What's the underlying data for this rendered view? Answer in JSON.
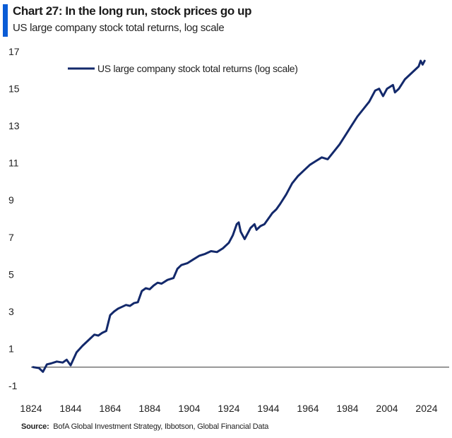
{
  "header": {
    "title": "Chart 27: In the long run, stock prices go up",
    "subtitle": "US large company stock total returns, log scale",
    "accent_color": "#0a5cd6"
  },
  "footer": {
    "source_label": "Source:",
    "source_text": "BofA Global Investment Strategy, Ibbotson, Global Financial Data"
  },
  "chart_data": {
    "type": "line",
    "title": "Chart 27: In the long run, stock prices go up",
    "subtitle": "US large company stock total returns, log scale",
    "xlabel": "",
    "ylabel": "",
    "xlim": [
      1824,
      2024
    ],
    "ylim": [
      -1,
      17
    ],
    "x_ticks": [
      1824,
      1844,
      1864,
      1884,
      1904,
      1924,
      1944,
      1964,
      1984,
      2004,
      2024
    ],
    "y_ticks": [
      -1,
      1,
      3,
      5,
      7,
      9,
      11,
      13,
      15,
      17
    ],
    "grid": false,
    "zero_line": true,
    "legend_position": "top-left",
    "line_color": "#13296b",
    "series": [
      {
        "name": "US large company stock total returns (log scale)",
        "x": [
          1825,
          1828,
          1830,
          1832,
          1834,
          1837,
          1840,
          1842,
          1844,
          1847,
          1850,
          1853,
          1856,
          1858,
          1860,
          1862,
          1864,
          1866,
          1868,
          1870,
          1872,
          1874,
          1876,
          1878,
          1880,
          1882,
          1884,
          1886,
          1888,
          1890,
          1893,
          1896,
          1898,
          1900,
          1903,
          1906,
          1909,
          1912,
          1915,
          1918,
          1921,
          1924,
          1926,
          1928,
          1929,
          1930,
          1932,
          1934,
          1935,
          1937,
          1938,
          1940,
          1942,
          1944,
          1946,
          1948,
          1950,
          1953,
          1956,
          1959,
          1962,
          1965,
          1968,
          1971,
          1974,
          1977,
          1980,
          1983,
          1986,
          1989,
          1992,
          1995,
          1998,
          2000,
          2002,
          2004,
          2007,
          2008,
          2010,
          2013,
          2016,
          2019,
          2020,
          2021,
          2022,
          2023
        ],
        "values": [
          0.0,
          -0.05,
          -0.25,
          0.15,
          0.2,
          0.3,
          0.25,
          0.4,
          0.1,
          0.8,
          1.15,
          1.45,
          1.75,
          1.7,
          1.85,
          1.95,
          2.8,
          3.0,
          3.15,
          3.25,
          3.35,
          3.3,
          3.45,
          3.5,
          4.1,
          4.25,
          4.2,
          4.4,
          4.55,
          4.5,
          4.7,
          4.8,
          5.3,
          5.5,
          5.6,
          5.8,
          6.0,
          6.1,
          6.25,
          6.2,
          6.4,
          6.7,
          7.1,
          7.7,
          7.8,
          7.3,
          6.9,
          7.3,
          7.5,
          7.7,
          7.4,
          7.6,
          7.7,
          8.0,
          8.3,
          8.5,
          8.8,
          9.3,
          9.9,
          10.3,
          10.6,
          10.9,
          11.1,
          11.3,
          11.2,
          11.6,
          12.0,
          12.5,
          13.0,
          13.5,
          13.9,
          14.3,
          14.9,
          15.0,
          14.6,
          15.0,
          15.2,
          14.8,
          15.0,
          15.5,
          15.8,
          16.1,
          16.2,
          16.5,
          16.3,
          16.5
        ]
      }
    ]
  }
}
